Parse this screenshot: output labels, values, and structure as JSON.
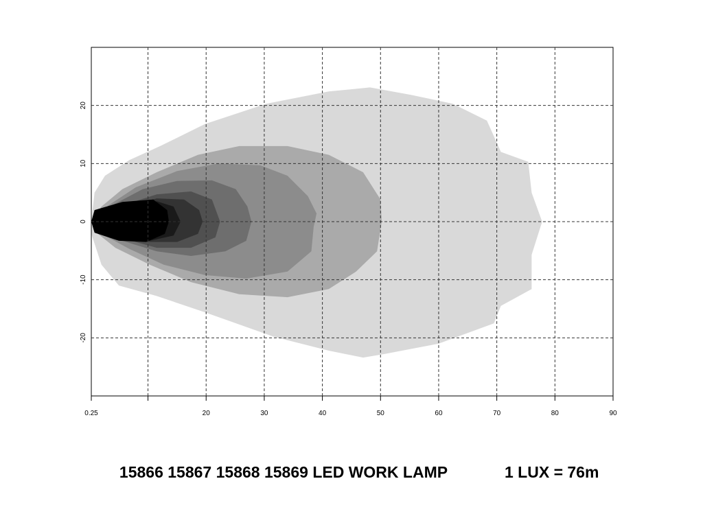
{
  "chart_data": {
    "type": "isolux",
    "title": "15866 15867 15868 15869 LED WORK LAMP",
    "subtitle": "1 LUX = 76m",
    "xlim": [
      0.25,
      90
    ],
    "xticks": [
      0.25,
      {
        "value": 10,
        "label": null
      },
      20,
      30,
      40,
      50,
      60,
      70,
      80,
      90
    ],
    "ylim": [
      -30,
      30
    ],
    "yticks": [
      -20,
      -10,
      0,
      10,
      20
    ],
    "grid": true,
    "series": [
      {
        "color": "#d9d9d9",
        "x": [
          0.25,
          0.8,
          2.6,
          6.8,
          12.1,
          19.8,
          30.4,
          41.1,
          48.2,
          55.3,
          62.4,
          68.3,
          70.7,
          75.4,
          76.0,
          77.8,
          76.0,
          76.0,
          70.7,
          69.5,
          60.0,
          50.6,
          47.0,
          41.1,
          31.6,
          19.8,
          11.5,
          5.0,
          2.0,
          0.25
        ],
        "values": [
          0,
          5.0,
          7.9,
          10.6,
          13.0,
          16.8,
          20.3,
          22.4,
          23.1,
          21.8,
          20.3,
          17.4,
          12.0,
          10.3,
          5.0,
          0,
          -5.7,
          -11.6,
          -14.5,
          -17.5,
          -21.0,
          -22.8,
          -23.4,
          -22.2,
          -19.8,
          -15.6,
          -12.8,
          -11.0,
          -7.4,
          -2.1
        ]
      },
      {
        "color": "#aaaaaa",
        "x": [
          0.25,
          2.0,
          5.6,
          11.5,
          18.6,
          25.7,
          34.0,
          41.1,
          47.0,
          50.0,
          50.2,
          49.4,
          45.8,
          41.1,
          34.0,
          25.7,
          17.4,
          10.3,
          4.4,
          1.4
        ],
        "values": [
          0,
          2.6,
          5.6,
          8.5,
          11.5,
          13.0,
          13.0,
          11.5,
          8.5,
          3.8,
          0,
          -5.1,
          -8.6,
          -11.6,
          -13.0,
          -12.5,
          -10.4,
          -7.4,
          -4.5,
          -2.1
        ]
      },
      {
        "color": "#8c8c8c",
        "x": [
          0.25,
          3.2,
          7.9,
          15.0,
          22.1,
          29.3,
          34.0,
          37.5,
          39.0,
          38.5,
          38.1,
          34.0,
          26.9,
          19.8,
          12.7,
          6.8,
          2.0
        ],
        "values": [
          0,
          2.8,
          5.9,
          8.7,
          10.0,
          9.7,
          7.9,
          4.4,
          1.4,
          -0.9,
          -5.1,
          -8.6,
          -9.8,
          -9.2,
          -7.4,
          -4.7,
          -2.1
        ]
      },
      {
        "color": "#6e6e6e",
        "x": [
          0.25,
          3.8,
          9.1,
          15.0,
          21.0,
          25.1,
          27.1,
          27.8,
          26.9,
          23.3,
          17.4,
          11.5,
          5.6,
          2.0
        ],
        "values": [
          0,
          2.8,
          5.6,
          7.0,
          7.1,
          5.6,
          2.6,
          0,
          -3.3,
          -5.1,
          -5.9,
          -5.1,
          -3.3,
          -1.9
        ]
      },
      {
        "color": "#505050",
        "x": [
          0.25,
          5.0,
          11.5,
          17.4,
          21.0,
          22.4,
          21.6,
          17.4,
          11.5,
          5.0
        ],
        "values": [
          0,
          2.6,
          4.7,
          5.2,
          3.8,
          0,
          -2.7,
          -4.5,
          -4.5,
          -2.7
        ]
      },
      {
        "color": "#333333",
        "x": [
          0.25,
          5.6,
          11.5,
          16.2,
          18.8,
          19.4,
          18.6,
          15.0,
          10.3,
          5.6
        ],
        "values": [
          0,
          2.4,
          4.0,
          3.8,
          2.0,
          0,
          -2.1,
          -3.5,
          -3.5,
          -2.1
        ]
      },
      {
        "color": "#1a1a1a",
        "x": [
          0.25,
          6.2,
          11.5,
          14.4,
          15.6,
          14.4,
          10.3,
          6.2
        ],
        "values": [
          0,
          2.2,
          3.5,
          2.6,
          0,
          -2.4,
          -3.3,
          -2.4
        ]
      },
      {
        "color": "#000000",
        "x": [
          0.25,
          0.8,
          5.6,
          10.9,
          13.3,
          13.6,
          12.9,
          9.7,
          5.0,
          0.8
        ],
        "values": [
          0,
          2.0,
          3.4,
          3.8,
          2.0,
          0,
          -2.1,
          -3.5,
          -3.3,
          -1.9
        ]
      }
    ]
  }
}
